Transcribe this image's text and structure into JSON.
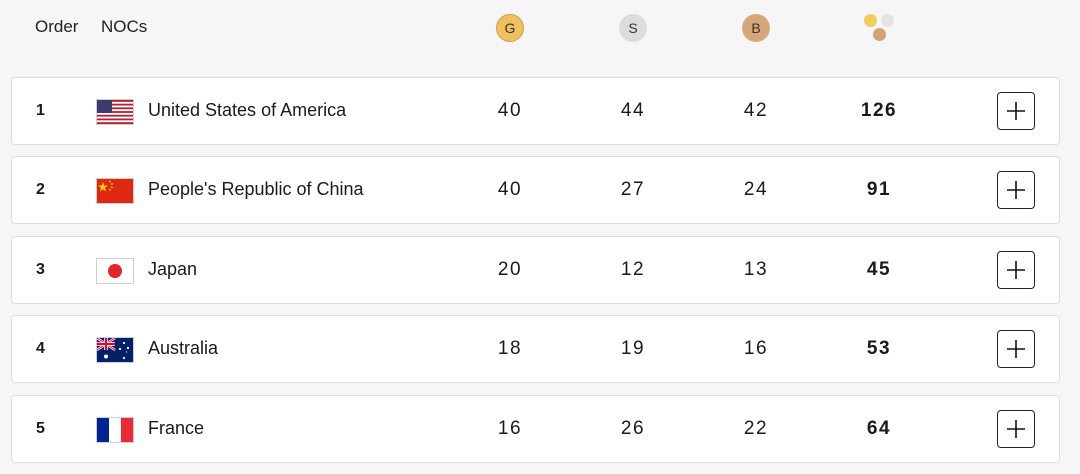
{
  "header": {
    "order_label": "Order",
    "nocs_label": "NOCs",
    "gold_label": "G",
    "silver_label": "S",
    "bronze_label": "B",
    "total_icon": "medal-trio-icon"
  },
  "colors": {
    "gold": "#efc060",
    "silver": "#dcdcdc",
    "bronze": "#d6a77a"
  },
  "rows": [
    {
      "rank": "1",
      "country": "United States of America",
      "flag_icon": "usa-flag-icon",
      "gold": "40",
      "silver": "44",
      "bronze": "42",
      "total": "126"
    },
    {
      "rank": "2",
      "country": "People's Republic of China",
      "flag_icon": "china-flag-icon",
      "gold": "40",
      "silver": "27",
      "bronze": "24",
      "total": "91"
    },
    {
      "rank": "3",
      "country": "Japan",
      "flag_icon": "japan-flag-icon",
      "gold": "20",
      "silver": "12",
      "bronze": "13",
      "total": "45"
    },
    {
      "rank": "4",
      "country": "Australia",
      "flag_icon": "australia-flag-icon",
      "gold": "18",
      "silver": "19",
      "bronze": "16",
      "total": "53"
    },
    {
      "rank": "5",
      "country": "France",
      "flag_icon": "france-flag-icon",
      "gold": "16",
      "silver": "26",
      "bronze": "22",
      "total": "64"
    }
  ]
}
